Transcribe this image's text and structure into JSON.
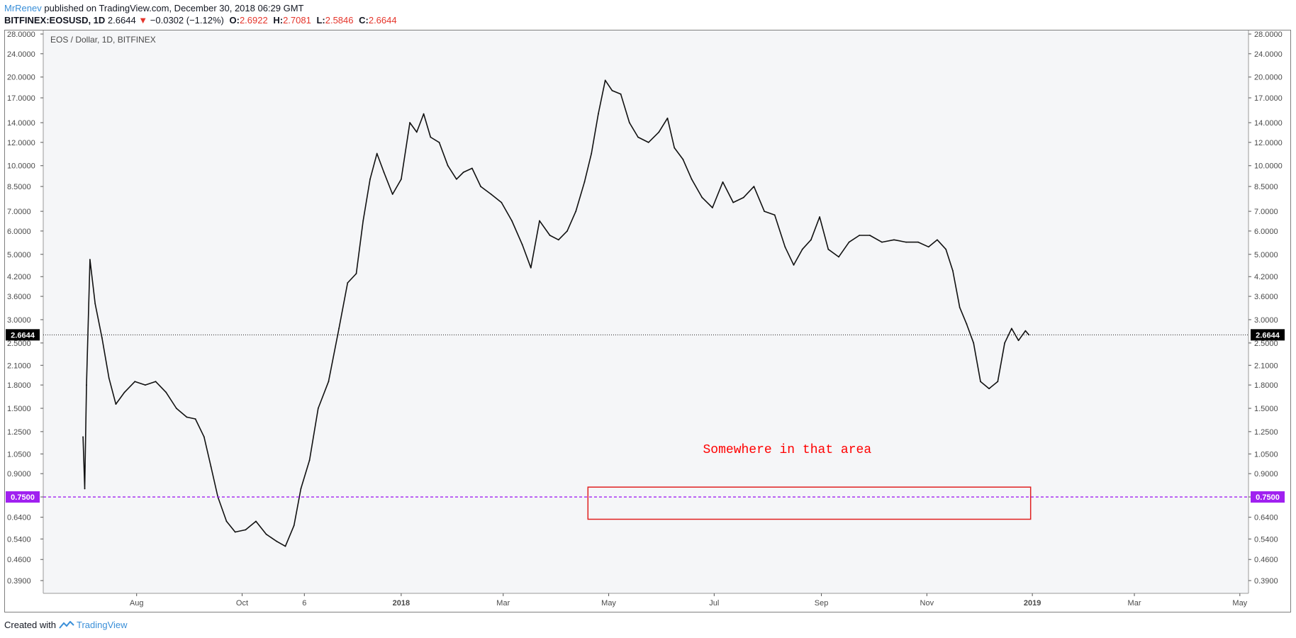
{
  "header": {
    "author": "MrRenev",
    "published_text": " published on TradingView.com, December 30, 2018 06:29 GMT"
  },
  "symbol_line": {
    "symbol": "BITFINEX:EOSUSD, 1D",
    "price": " 2.6644 ",
    "change_arrow": "▼",
    "change": " −0.0302 (−1.12%)",
    "o_label": "O:",
    "o_value": "2.6922",
    "h_label": "H:",
    "h_value": "2.7081",
    "l_label": "L:",
    "l_value": "2.5846",
    "c_label": "C:",
    "c_value": "2.6644"
  },
  "footer": {
    "created_with": "Created with",
    "brand": "TradingView"
  },
  "colors": {
    "up_down": "#e5352b",
    "annotation": "#ff0000",
    "level_line": "#a020f0",
    "price_tag": "#000000",
    "plot_bg": "#f5f6f8"
  },
  "chart_data": {
    "type": "line",
    "title": "EOS / Dollar, 1D, BITFINEX",
    "scale": "log",
    "ylim": [
      0.39,
      28
    ],
    "y_ticks": [
      "28.0000",
      "24.0000",
      "20.0000",
      "17.0000",
      "14.0000",
      "12.0000",
      "10.0000",
      "8.5000",
      "7.0000",
      "6.0000",
      "5.0000",
      "4.2000",
      "3.6000",
      "3.0000",
      "2.5000",
      "2.1000",
      "1.8000",
      "1.5000",
      "1.2500",
      "1.0500",
      "0.9000",
      "0.7500",
      "0.6400",
      "0.5400",
      "0.4600",
      "0.3900"
    ],
    "x_ticks": [
      {
        "label": "Aug",
        "date": "2017-08-01",
        "bold": false
      },
      {
        "label": "Oct",
        "date": "2017-10-01",
        "bold": false
      },
      {
        "label": "6",
        "date": "2017-11-06",
        "bold": false
      },
      {
        "label": "2018",
        "date": "2018-01-01",
        "bold": true
      },
      {
        "label": "Mar",
        "date": "2018-03-01",
        "bold": false
      },
      {
        "label": "May",
        "date": "2018-05-01",
        "bold": false
      },
      {
        "label": "Jul",
        "date": "2018-07-01",
        "bold": false
      },
      {
        "label": "Sep",
        "date": "2018-09-01",
        "bold": false
      },
      {
        "label": "Nov",
        "date": "2018-11-01",
        "bold": false
      },
      {
        "label": "2019",
        "date": "2019-01-01",
        "bold": true
      },
      {
        "label": "Mar",
        "date": "2019-03-01",
        "bold": false
      },
      {
        "label": "May",
        "date": "2019-05-01",
        "bold": false
      }
    ],
    "x_range": [
      "2017-06-08",
      "2019-05-06"
    ],
    "series": [
      {
        "x": [
          "2017-07-01",
          "2017-07-02",
          "2017-07-03",
          "2017-07-05",
          "2017-07-08",
          "2017-07-12",
          "2017-07-16",
          "2017-07-20",
          "2017-07-25",
          "2017-07-31",
          "2017-08-06",
          "2017-08-12",
          "2017-08-18",
          "2017-08-24",
          "2017-08-30",
          "2017-09-04",
          "2017-09-09",
          "2017-09-13",
          "2017-09-17",
          "2017-09-22",
          "2017-09-27",
          "2017-10-03",
          "2017-10-09",
          "2017-10-15",
          "2017-10-21",
          "2017-10-26",
          "2017-10-31",
          "2017-11-04",
          "2017-11-09",
          "2017-11-14",
          "2017-11-20",
          "2017-11-26",
          "2017-12-01",
          "2017-12-06",
          "2017-12-10",
          "2017-12-14",
          "2017-12-18",
          "2017-12-22",
          "2017-12-27",
          "2018-01-01",
          "2018-01-06",
          "2018-01-10",
          "2018-01-14",
          "2018-01-18",
          "2018-01-23",
          "2018-01-28",
          "2018-02-02",
          "2018-02-06",
          "2018-02-11",
          "2018-02-16",
          "2018-02-22",
          "2018-02-28",
          "2018-03-06",
          "2018-03-12",
          "2018-03-17",
          "2018-03-22",
          "2018-03-28",
          "2018-04-02",
          "2018-04-07",
          "2018-04-12",
          "2018-04-17",
          "2018-04-21",
          "2018-04-25",
          "2018-04-29",
          "2018-05-03",
          "2018-05-08",
          "2018-05-13",
          "2018-05-18",
          "2018-05-24",
          "2018-05-30",
          "2018-06-04",
          "2018-06-08",
          "2018-06-13",
          "2018-06-18",
          "2018-06-24",
          "2018-06-30",
          "2018-07-06",
          "2018-07-12",
          "2018-07-18",
          "2018-07-24",
          "2018-07-30",
          "2018-08-05",
          "2018-08-11",
          "2018-08-16",
          "2018-08-21",
          "2018-08-26",
          "2018-08-31",
          "2018-09-05",
          "2018-09-11",
          "2018-09-17",
          "2018-09-23",
          "2018-09-29",
          "2018-10-06",
          "2018-10-13",
          "2018-10-20",
          "2018-10-27",
          "2018-11-02",
          "2018-11-07",
          "2018-11-12",
          "2018-11-16",
          "2018-11-20",
          "2018-11-24",
          "2018-11-28",
          "2018-12-02",
          "2018-12-07",
          "2018-12-12",
          "2018-12-16",
          "2018-12-20",
          "2018-12-24",
          "2018-12-28",
          "2018-12-30"
        ],
        "values": [
          1.2,
          0.8,
          1.8,
          4.8,
          3.4,
          2.6,
          1.9,
          1.55,
          1.7,
          1.85,
          1.8,
          1.85,
          1.7,
          1.5,
          1.4,
          1.38,
          1.2,
          0.95,
          0.75,
          0.62,
          0.57,
          0.58,
          0.62,
          0.56,
          0.53,
          0.51,
          0.6,
          0.8,
          1.0,
          1.5,
          1.85,
          2.8,
          4.0,
          4.3,
          6.5,
          9.0,
          11.0,
          9.5,
          8.0,
          9.0,
          14.0,
          13.0,
          15.0,
          12.5,
          12.0,
          10.0,
          9.0,
          9.5,
          9.8,
          8.5,
          8.0,
          7.5,
          6.5,
          5.4,
          4.5,
          6.5,
          5.8,
          5.6,
          6.0,
          7.0,
          8.8,
          11.0,
          15.0,
          19.5,
          18.0,
          17.5,
          14.0,
          12.5,
          12.0,
          13.0,
          14.5,
          11.5,
          10.5,
          9.0,
          7.8,
          7.2,
          8.8,
          7.5,
          7.8,
          8.5,
          7.0,
          6.8,
          5.3,
          4.6,
          5.2,
          5.6,
          6.7,
          5.2,
          4.9,
          5.5,
          5.8,
          5.8,
          5.5,
          5.6,
          5.5,
          5.5,
          5.3,
          5.6,
          5.2,
          4.4,
          3.3,
          2.9,
          2.5,
          1.85,
          1.75,
          1.85,
          2.5,
          2.8,
          2.55,
          2.75,
          2.6644
        ]
      }
    ],
    "last_price": {
      "value": 2.6644,
      "label": "2.6644"
    },
    "level": {
      "value": 0.75,
      "label": "0.7500"
    },
    "annotation": {
      "text": "Somewhere in that area",
      "box_from": "2018-04-19",
      "box_to": "2018-12-31",
      "box_low": 0.63,
      "box_high": 0.81
    },
    "grid": false
  }
}
